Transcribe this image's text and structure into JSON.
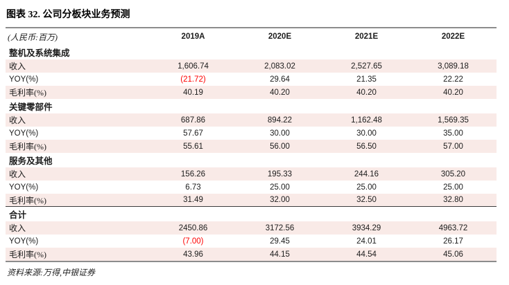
{
  "title": "图表 32. 公司分板块业务预测",
  "header": {
    "unit_label": "(人民币:百万)",
    "years": [
      "2019A",
      "2020E",
      "2021E",
      "2022E"
    ]
  },
  "sections": [
    {
      "name": "整机及系统集成",
      "rows": [
        {
          "label": "收入",
          "values": [
            "1,606.74",
            "2,083.02",
            "2,527.65",
            "3,089.18"
          ]
        },
        {
          "label": "YOY(%)",
          "values": [
            "(21.72)",
            "29.64",
            "21.35",
            "22.22"
          ]
        },
        {
          "label": "毛利率(%)",
          "values": [
            "40.19",
            "40.20",
            "40.20",
            "40.20"
          ]
        }
      ]
    },
    {
      "name": "关键零部件",
      "rows": [
        {
          "label": "收入",
          "values": [
            "687.86",
            "894.22",
            "1,162.48",
            "1,569.35"
          ]
        },
        {
          "label": "YOY(%)",
          "values": [
            "57.67",
            "30.00",
            "30.00",
            "35.00"
          ]
        },
        {
          "label": "毛利率(%)",
          "values": [
            "55.61",
            "56.00",
            "56.50",
            "57.00"
          ]
        }
      ]
    },
    {
      "name": "服务及其他",
      "rows": [
        {
          "label": "收入",
          "values": [
            "156.26",
            "195.33",
            "244.16",
            "305.20"
          ]
        },
        {
          "label": "YOY(%)",
          "values": [
            "6.73",
            "25.00",
            "25.00",
            "25.00"
          ]
        },
        {
          "label": "毛利率(%)",
          "values": [
            "31.49",
            "32.00",
            "32.50",
            "32.80"
          ]
        }
      ]
    },
    {
      "name": "合计",
      "rows": [
        {
          "label": "收入",
          "values": [
            "2450.86",
            "3172.56",
            "3934.29",
            "4963.72"
          ]
        },
        {
          "label": "YOY(%)",
          "values": [
            "(7.00)",
            "29.45",
            "24.01",
            "26.17"
          ]
        },
        {
          "label": "毛利率(%)",
          "values": [
            "43.96",
            "44.15",
            "44.54",
            "45.06"
          ]
        }
      ]
    }
  ],
  "source": "资料来源:万得,中银证券",
  "colors": {
    "pink_row": "#f9eae7",
    "rule_gray": "#8c8c8c",
    "negative": "#ff0000",
    "divider_dark": "#3c3c3c"
  }
}
